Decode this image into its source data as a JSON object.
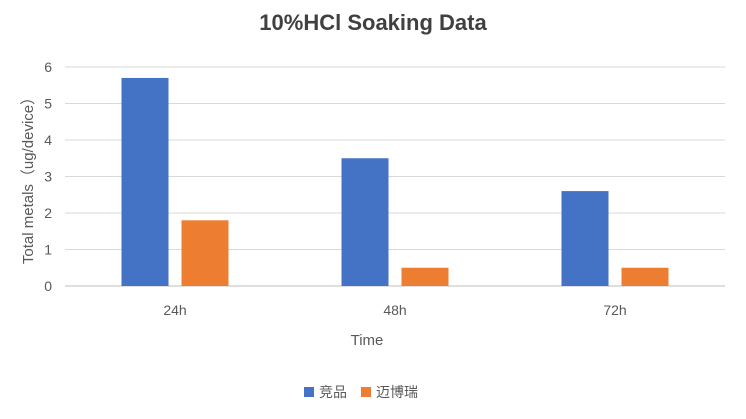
{
  "chart_data": {
    "type": "bar",
    "title": "10%HCl Soaking Data",
    "xlabel": "Time",
    "ylabel": "Total metals（ug/device）",
    "categories": [
      "24h",
      "48h",
      "72h"
    ],
    "series": [
      {
        "name": "竞品",
        "values": [
          5.7,
          3.5,
          2.6
        ],
        "color": "#4472C4"
      },
      {
        "name": "迈博瑞",
        "values": [
          1.8,
          0.5,
          0.5
        ],
        "color": "#ED7D31"
      }
    ],
    "ylim": [
      0,
      6
    ],
    "yticks": [
      "0",
      "1",
      "2",
      "3",
      "4",
      "5",
      "6"
    ],
    "grid": true,
    "legend": "bottom"
  }
}
